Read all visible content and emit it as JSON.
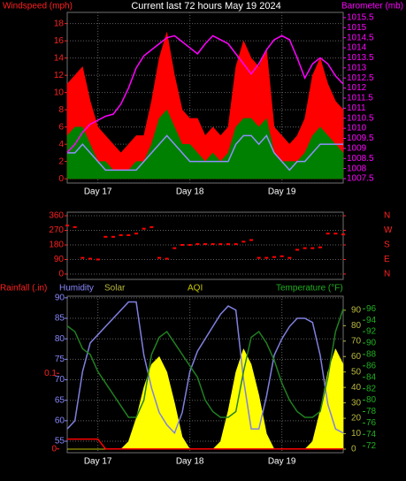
{
  "chart_data": [
    {
      "type": "line",
      "title": "Current last 72 hours May 19 2024",
      "x": [
        0,
        2,
        4,
        6,
        8,
        10,
        12,
        14,
        16,
        18,
        20,
        22,
        24,
        26,
        28,
        30,
        32,
        34,
        36,
        38,
        40,
        42,
        44,
        46,
        48,
        50,
        52,
        54,
        56,
        58,
        60,
        62,
        64,
        66,
        68,
        70,
        72
      ],
      "xlim": [
        0,
        72
      ],
      "xticks": [
        {
          "value": 8,
          "label": "Day 17"
        },
        {
          "value": 32,
          "label": "Day 18"
        },
        {
          "value": 56,
          "label": "Day 19"
        }
      ],
      "grid": true,
      "axes": [
        {
          "label": "Windspeed (mph)",
          "color": "#ff2020",
          "lim": [
            -0.5,
            19.3
          ],
          "ticks": [
            0,
            2,
            4,
            6,
            8,
            10,
            12,
            14,
            16,
            18
          ]
        },
        {
          "label": "Barometer (mb)",
          "color": "#ff00ff",
          "lim": [
            1007.28,
            1015.76
          ],
          "ticks": [
            1007.5,
            1008,
            1008.5,
            1009,
            1009.5,
            1010,
            1010.5,
            1011,
            1011.5,
            1012,
            1012.5,
            1013,
            1013.5,
            1014,
            1014.5,
            1015,
            1015.5
          ]
        }
      ],
      "series": [
        {
          "type": "area",
          "axis": 0,
          "color": "#ff0000",
          "values": [
            11,
            12,
            13,
            9,
            6,
            5,
            4,
            3,
            4,
            5,
            5,
            9,
            14,
            17,
            12,
            8,
            7,
            7,
            5,
            6,
            5,
            6,
            13,
            16,
            14,
            13,
            15,
            6,
            5,
            4,
            5,
            7,
            12,
            14,
            11,
            9,
            8
          ]
        },
        {
          "type": "area",
          "axis": 0,
          "color": "#008000",
          "values": [
            5,
            6,
            6,
            4,
            2,
            2,
            1,
            1,
            1,
            2,
            2,
            4,
            7,
            8,
            6,
            4,
            4,
            3,
            2,
            3,
            2,
            3,
            6,
            7,
            7,
            6,
            7,
            3,
            2,
            2,
            2,
            3,
            5,
            6,
            5,
            4,
            3
          ]
        },
        {
          "type": "line",
          "axis": 0,
          "color": "#9090ff",
          "values": [
            3,
            3,
            4,
            3,
            2,
            1,
            1,
            1,
            1,
            1,
            2,
            3,
            4,
            5,
            4,
            3,
            2,
            2,
            2,
            2,
            2,
            2,
            4,
            5,
            5,
            4,
            5,
            3,
            2,
            1,
            2,
            2,
            3,
            4,
            4,
            4,
            4
          ]
        },
        {
          "type": "line",
          "axis": 1,
          "color": "#ff00ff",
          "values": [
            1008.8,
            1009.2,
            1009.8,
            1010.2,
            1010.4,
            1010.6,
            1010.7,
            1011.2,
            1012,
            1013,
            1013.6,
            1013.9,
            1014.2,
            1014.5,
            1014.6,
            1014.3,
            1014,
            1013.7,
            1014.2,
            1014.6,
            1014.4,
            1014.2,
            1013.7,
            1013.2,
            1012.7,
            1013.2,
            1013.9,
            1014.4,
            1014.6,
            1014.4,
            1013.5,
            1012.5,
            1013.2,
            1013.5,
            1013.2,
            1012.6,
            1012.2
          ]
        }
      ]
    },
    {
      "type": "scatter",
      "x": [
        0,
        2,
        4,
        6,
        8,
        10,
        12,
        14,
        16,
        18,
        20,
        22,
        24,
        26,
        28,
        30,
        32,
        34,
        36,
        38,
        40,
        42,
        44,
        46,
        48,
        50,
        52,
        54,
        56,
        58,
        60,
        62,
        64,
        66,
        68,
        70,
        72
      ],
      "xlim": [
        0,
        72
      ],
      "grid": true,
      "axes": [
        {
          "color": "#ff2020",
          "lim": [
            -33,
            382
          ],
          "ticks": [
            0,
            90,
            180,
            270,
            360
          ]
        },
        {
          "color": "#ff2020",
          "lim": [
            -33,
            382
          ],
          "ticks": [
            {
              "value": 360,
              "label": "N"
            },
            {
              "value": 270,
              "label": "W"
            },
            {
              "value": 180,
              "label": "S"
            },
            {
              "value": 90,
              "label": "E"
            },
            {
              "value": 0,
              "label": "N"
            }
          ]
        }
      ],
      "series": [
        {
          "type": "scatter",
          "axis": 0,
          "color": "#ff0000",
          "values": [
            300,
            290,
            100,
            95,
            90,
            230,
            230,
            240,
            240,
            250,
            280,
            290,
            100,
            95,
            160,
            180,
            180,
            185,
            185,
            185,
            185,
            185,
            185,
            200,
            210,
            100,
            100,
            105,
            110,
            100,
            150,
            160,
            160,
            165,
            250,
            250,
            245
          ]
        }
      ]
    },
    {
      "type": "line",
      "x": [
        0,
        2,
        4,
        6,
        8,
        10,
        12,
        14,
        16,
        18,
        20,
        22,
        24,
        26,
        28,
        30,
        32,
        34,
        36,
        38,
        40,
        42,
        44,
        46,
        48,
        50,
        52,
        54,
        56,
        58,
        60,
        62,
        64,
        66,
        68,
        70,
        72
      ],
      "xlim": [
        0,
        72
      ],
      "xticks": [
        {
          "value": 8,
          "label": "Day 17"
        },
        {
          "value": 32,
          "label": "Day 18"
        },
        {
          "value": 56,
          "label": "Day 19"
        }
      ],
      "grid": true,
      "axes": [
        {
          "label": "Rainfall (.in)",
          "color": "#ff2020",
          "lim": [
            -0.005,
            0.202
          ],
          "ticks": [
            0,
            0.1
          ]
        },
        {
          "label": "Humidity",
          "color": "#8888ff",
          "lim": [
            52.2,
            90.4
          ],
          "ticks": [
            55,
            60,
            65,
            70,
            75,
            80,
            85,
            90
          ]
        },
        {
          "label": "Solar",
          "color": "#b8b840",
          "lim": [
            -2.3,
            99.1
          ],
          "ticks": [
            0,
            10,
            20,
            30,
            40,
            50,
            60,
            70,
            80,
            90
          ]
        },
        {
          "label": "AQI",
          "color": "#c8c800"
        },
        {
          "label": "Temperature (°F)",
          "color": "#20b020",
          "lim": [
            70.8,
            98.2
          ],
          "ticks": [
            72,
            74,
            76,
            78,
            80,
            82,
            84,
            86,
            88,
            90,
            92,
            94,
            96
          ]
        }
      ],
      "series": [
        {
          "type": "area",
          "axis": 2,
          "color": "#ffff00",
          "values": [
            0,
            0,
            0,
            0,
            0,
            0,
            0,
            0,
            5,
            20,
            40,
            55,
            60,
            50,
            30,
            8,
            0,
            0,
            0,
            0,
            5,
            25,
            50,
            65,
            55,
            35,
            10,
            0,
            0,
            0,
            0,
            0,
            5,
            25,
            50,
            65,
            55
          ]
        },
        {
          "type": "line",
          "axis": 1,
          "color": "#8080e0",
          "values": [
            58,
            60,
            72,
            79,
            81,
            83,
            85,
            87,
            89,
            89,
            76,
            68,
            62,
            59,
            57,
            62,
            72,
            77,
            80,
            83,
            86,
            88,
            87,
            70,
            58,
            58,
            66,
            76,
            80,
            83,
            85,
            85,
            84,
            76,
            64,
            58,
            57
          ]
        },
        {
          "type": "line",
          "axis": 4,
          "color": "#208020",
          "values": [
            93,
            92,
            89,
            88,
            85,
            83,
            81,
            79,
            77,
            77,
            80,
            88,
            91,
            92,
            90,
            88,
            86,
            84,
            80,
            78,
            77,
            77,
            78,
            85,
            91,
            92,
            90,
            87,
            83,
            80,
            78,
            77,
            77,
            78,
            84,
            92,
            96
          ]
        },
        {
          "type": "line",
          "axis": 0,
          "color": "#ff0000",
          "values": [
            0.013,
            0.013,
            0.013,
            0.013,
            0.013,
            0,
            0,
            0,
            0,
            0,
            0,
            0,
            0,
            0,
            0,
            0,
            0,
            0,
            0,
            0,
            0,
            0,
            0,
            0,
            0,
            0,
            0,
            0,
            0,
            0,
            0,
            0,
            0,
            0,
            0,
            0,
            0
          ]
        }
      ]
    }
  ]
}
